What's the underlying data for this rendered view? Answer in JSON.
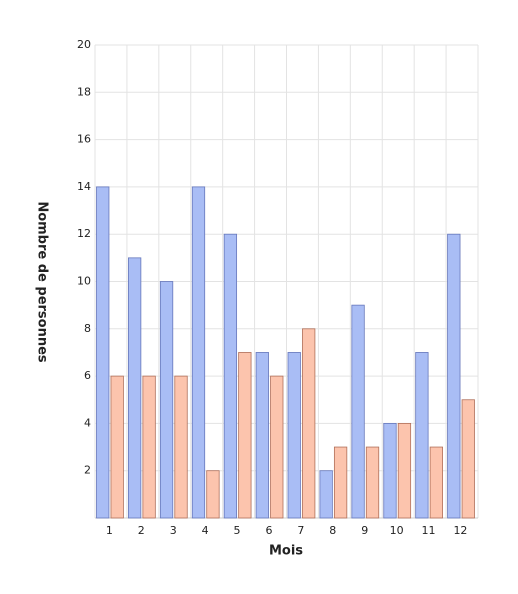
{
  "chart_data": {
    "type": "bar",
    "x_label": "Mois",
    "y_label": "Nombre de personnes",
    "categories": [
      "1",
      "2",
      "3",
      "4",
      "5",
      "6",
      "7",
      "8",
      "9",
      "10",
      "11",
      "12"
    ],
    "series": [
      {
        "color": "#a9bdf5",
        "values": [
          14,
          11,
          10,
          14,
          12,
          7,
          7,
          2,
          9,
          4,
          7,
          12
        ]
      },
      {
        "color": "#fcc4ad",
        "values": [
          6,
          6,
          6,
          2,
          7,
          6,
          8,
          3,
          3,
          4,
          3,
          5
        ]
      }
    ],
    "ylim": [
      0,
      20
    ],
    "yticks": [
      2,
      4,
      6,
      8,
      10,
      12,
      14,
      16,
      18,
      20
    ],
    "grid": true
  }
}
